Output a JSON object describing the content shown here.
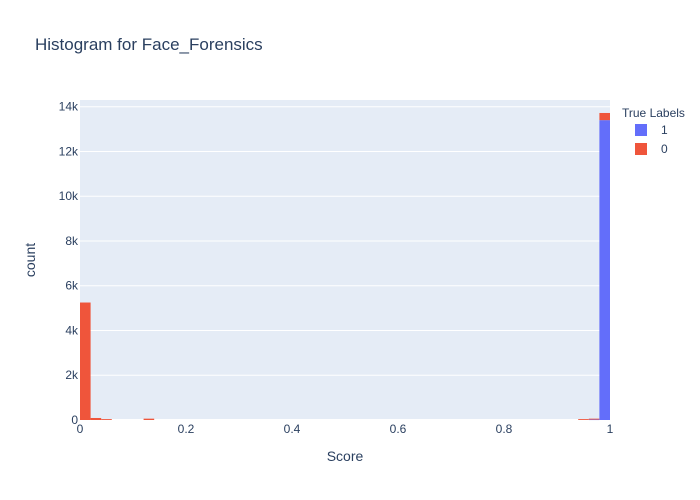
{
  "chart_data": {
    "type": "bar",
    "title": "Histogram for Face_Forensics",
    "xlabel": "Score",
    "ylabel": "count",
    "xlim": [
      0,
      1
    ],
    "ylim": [
      0,
      14300
    ],
    "x_ticks": [
      0,
      0.2,
      0.4,
      0.6,
      0.8,
      1
    ],
    "x_tick_labels": [
      "0",
      "0.2",
      "0.4",
      "0.6",
      "0.8",
      "1"
    ],
    "y_ticks": [
      0,
      2000,
      4000,
      6000,
      8000,
      10000,
      12000,
      14000
    ],
    "y_tick_labels": [
      "0",
      "2k",
      "4k",
      "6k",
      "8k",
      "10k",
      "12k",
      "14k"
    ],
    "grid": true,
    "barmode": "stack",
    "bin_width": 0.02,
    "legend": {
      "title": "True Labels",
      "placement": "right"
    },
    "series": [
      {
        "name": "1",
        "color": "#636efa",
        "bins": [
          {
            "x0": 0.96,
            "count": 20
          },
          {
            "x0": 0.98,
            "count": 13400
          }
        ]
      },
      {
        "name": "0",
        "color": "#ef553b",
        "bins": [
          {
            "x0": 0.0,
            "count": 5250
          },
          {
            "x0": 0.02,
            "count": 90
          },
          {
            "x0": 0.04,
            "count": 40
          },
          {
            "x0": 0.12,
            "count": 60
          },
          {
            "x0": 0.94,
            "count": 40
          },
          {
            "x0": 0.96,
            "count": 40
          },
          {
            "x0": 0.98,
            "count": 320
          }
        ]
      }
    ]
  }
}
